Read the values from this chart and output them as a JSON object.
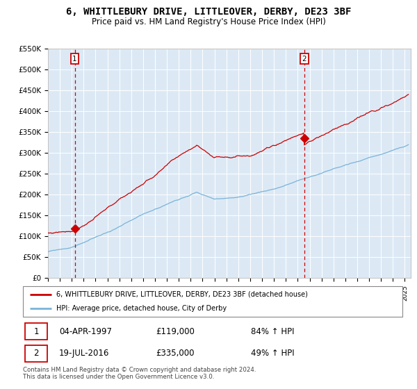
{
  "title": "6, WHITTLEBURY DRIVE, LITTLEOVER, DERBY, DE23 3BF",
  "subtitle": "Price paid vs. HM Land Registry's House Price Index (HPI)",
  "title_fontsize": 10,
  "subtitle_fontsize": 8.5,
  "hpi_color": "#7ab3d8",
  "price_color": "#cc0000",
  "marker_color": "#cc0000",
  "background_color": "#dce9f5",
  "grid_color": "#ffffff",
  "vline_color": "#cc0000",
  "ylim": [
    0,
    550000
  ],
  "yticks": [
    0,
    50000,
    100000,
    150000,
    200000,
    250000,
    300000,
    350000,
    400000,
    450000,
    500000,
    550000
  ],
  "sale1_year": 1997.25,
  "sale1_price": 119000,
  "sale1_label": "1",
  "sale2_year": 2016.54,
  "sale2_price": 335000,
  "sale2_label": "2",
  "legend_line1": "6, WHITTLEBURY DRIVE, LITTLEOVER, DERBY, DE23 3BF (detached house)",
  "legend_line2": "HPI: Average price, detached house, City of Derby",
  "table_row1": [
    "1",
    "04-APR-1997",
    "£119,000",
    "84% ↑ HPI"
  ],
  "table_row2": [
    "2",
    "19-JUL-2016",
    "£335,000",
    "49% ↑ HPI"
  ],
  "footnote1": "Contains HM Land Registry data © Crown copyright and database right 2024.",
  "footnote2": "This data is licensed under the Open Government Licence v3.0.",
  "xmin": 1995.0,
  "xmax": 2025.5
}
